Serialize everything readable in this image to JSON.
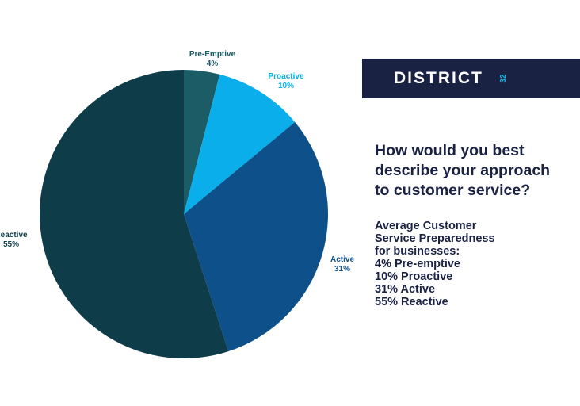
{
  "brand": {
    "name": "DISTRICT",
    "number": "32"
  },
  "headline": "How would you best\ndescribe your approach\nto customer service?",
  "summary": {
    "lines": [
      "Average Customer",
      "Service Preparedness",
      "for businesses:",
      "4% Pre-emptive",
      "10% Proactive",
      "31% Active",
      "55% Reactive"
    ]
  },
  "colors": {
    "brand_bar": "#1a2244",
    "brand_accent": "#16b4e6",
    "headline_text": "#1a2244"
  },
  "chart_data": {
    "type": "pie",
    "start_angle_deg": 0,
    "direction": "clockwise",
    "slices": [
      {
        "name": "Pre-Emptive",
        "value": 4,
        "label": "4%",
        "color": "#1b5c66",
        "label_color": "#1b5c66"
      },
      {
        "name": "Proactive",
        "value": 10,
        "label": "10%",
        "color": "#09aeea",
        "label_color": "#09aeea"
      },
      {
        "name": "Active",
        "value": 31,
        "label": "31%",
        "color": "#0e5089",
        "label_color": "#0e5089"
      },
      {
        "name": "Reactive",
        "value": 55,
        "label": "55%",
        "color": "#0e3c49",
        "label_color": "#0e3c49"
      }
    ]
  }
}
